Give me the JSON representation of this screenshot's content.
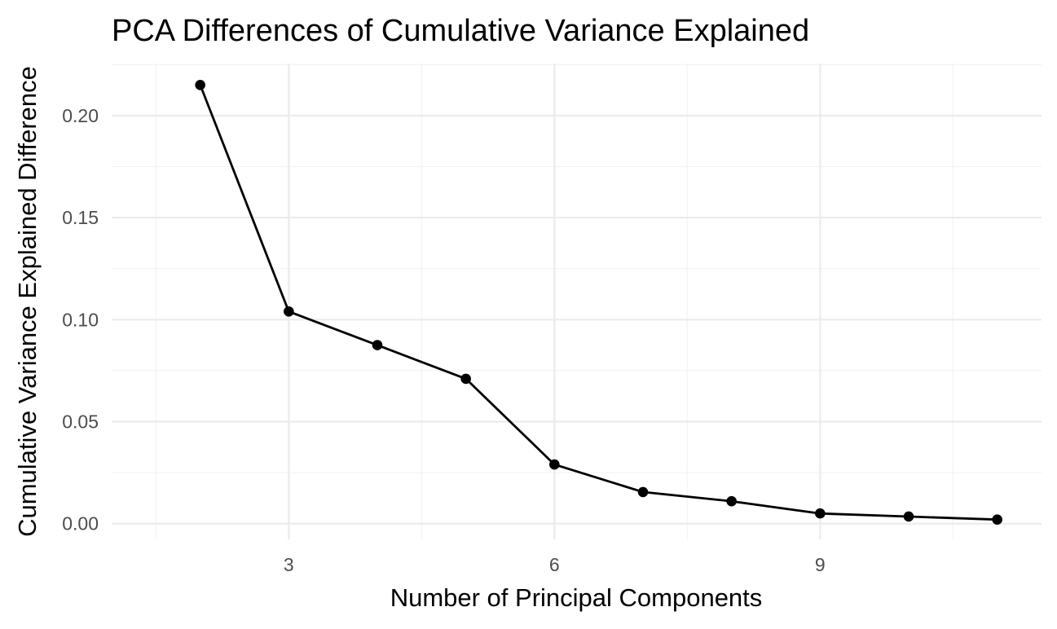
{
  "chart_data": {
    "type": "line",
    "title": "PCA Differences of Cumulative Variance Explained",
    "xlabel": "Number of Principal Components",
    "ylabel": "Cumulative Variance Explained Difference",
    "x": [
      2,
      3,
      4,
      5,
      6,
      7,
      8,
      9,
      10,
      11
    ],
    "values": [
      0.215,
      0.104,
      0.0875,
      0.071,
      0.029,
      0.0155,
      0.011,
      0.005,
      0.0035,
      0.002
    ],
    "xlim": [
      1,
      11.5
    ],
    "ylim": [
      -0.0077,
      0.2255
    ],
    "x_ticks": [
      3,
      6,
      9
    ],
    "x_tick_labels": [
      "3",
      "6",
      "9"
    ],
    "y_ticks": [
      0,
      0.05,
      0.1,
      0.15,
      0.2
    ],
    "y_tick_labels": [
      "0.00",
      "0.05",
      "0.10",
      "0.15",
      "0.20"
    ],
    "grid": true,
    "legend": "none",
    "series_color": "#000000"
  }
}
